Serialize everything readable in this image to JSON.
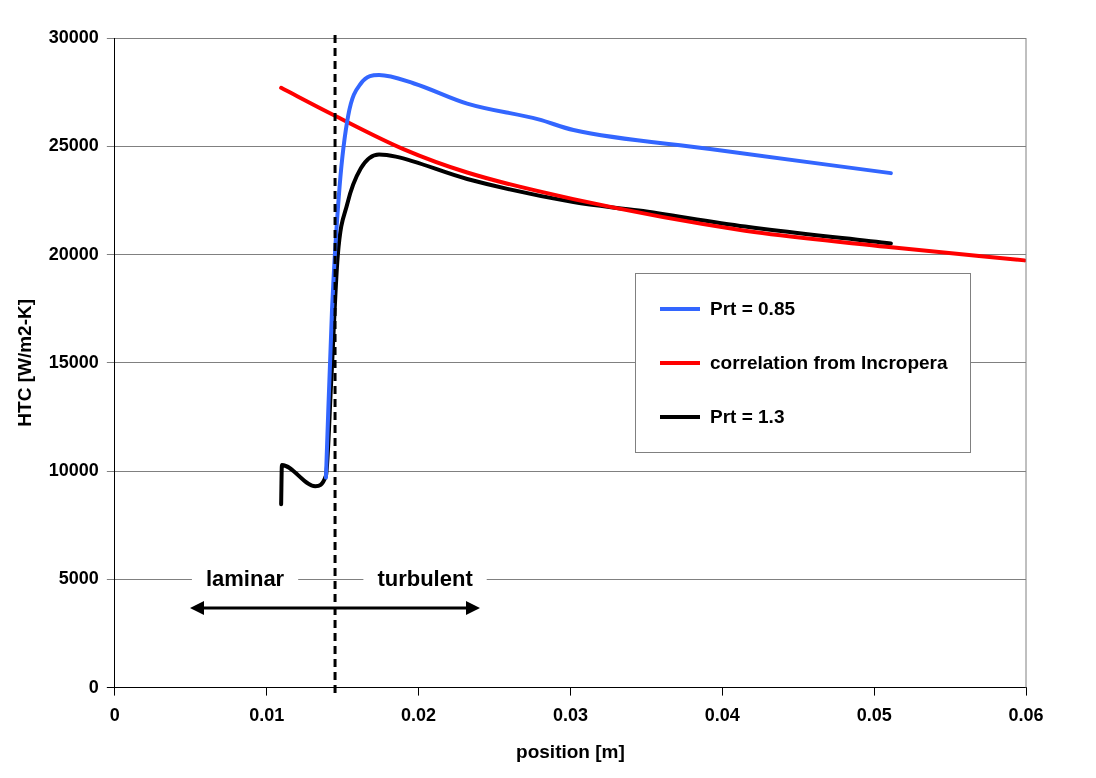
{
  "chart_data": {
    "type": "line",
    "xlabel": "position [m]",
    "ylabel": "HTC [W/m2-K]",
    "xlim": [
      0,
      0.06
    ],
    "xticks": [
      0,
      0.01,
      0.02,
      0.03,
      0.04,
      0.05,
      0.06
    ],
    "ylim": [
      0,
      30000
    ],
    "yticks": [
      0,
      5000,
      10000,
      15000,
      20000,
      25000,
      30000
    ],
    "grid": "y",
    "legend": "right",
    "marker": "none",
    "line_style": "solid",
    "series": [
      {
        "name": "Prt = 0.85",
        "color": "#3366ff",
        "x": [
          0.0139,
          0.01393,
          0.0143,
          0.0148,
          0.01537,
          0.0162,
          0.0174,
          0.0197,
          0.0232,
          0.0279,
          0.0302,
          0.0392,
          0.0511
        ],
        "values": [
          9700,
          10280,
          17430,
          23150,
          26430,
          27900,
          28290,
          27900,
          26970,
          26240,
          25750,
          24870,
          23760
        ]
      },
      {
        "name": "correlation from Incropera",
        "color": "#ff0000",
        "x": [
          0.01095,
          0.0143,
          0.019,
          0.0232,
          0.0302,
          0.0415,
          0.0508,
          0.0599
        ],
        "values": [
          27700,
          26480,
          24870,
          23790,
          22560,
          21100,
          20360,
          19730
        ]
      },
      {
        "name": "Prt = 1.3",
        "color": "#000000",
        "x": [
          0.01095,
          0.011,
          0.0132,
          0.0139,
          0.01425,
          0.01467,
          0.0153,
          0.0162,
          0.0174,
          0.0185,
          0.0232,
          0.0302,
          0.0345,
          0.0415,
          0.0511
        ],
        "values": [
          8470,
          10280,
          9300,
          9790,
          14190,
          19870,
          22320,
          23980,
          24620,
          24520,
          23490,
          22420,
          22030,
          21290,
          20510
        ]
      }
    ],
    "ref_lines": [
      {
        "axis": "x",
        "value": 0.0145,
        "color": "#000000",
        "line_style": "dashed"
      }
    ],
    "annotations": [
      "laminar",
      "turbulent"
    ]
  }
}
